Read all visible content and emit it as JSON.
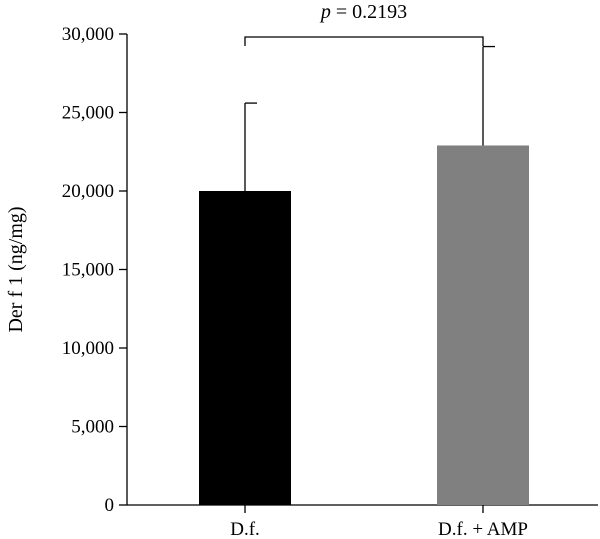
{
  "chart_data": {
    "type": "bar",
    "categories": [
      "D.f.",
      "D.f. + AMP"
    ],
    "values": [
      20000,
      22900
    ],
    "error_upper": [
      25600,
      29200
    ],
    "colors": [
      "#000000",
      "#808080"
    ],
    "ylabel": "Der f 1 (ng/mg)",
    "xlabel": "",
    "ylim": [
      0,
      30000
    ],
    "yticks": [
      0,
      5000,
      10000,
      15000,
      20000,
      25000,
      30000
    ],
    "ytick_labels": [
      "0",
      "5,000",
      "10,000",
      "15,000",
      "20,000",
      "25,000",
      "30,000"
    ],
    "grid": false,
    "annotation": {
      "p_symbol": "p",
      "p_rest": " = 0.2193",
      "between": [
        0,
        1
      ]
    }
  }
}
